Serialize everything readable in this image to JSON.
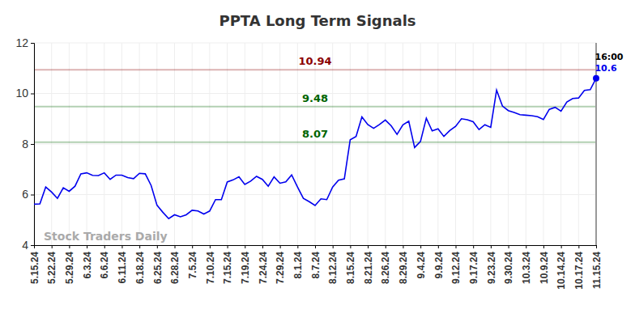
{
  "chart_data": {
    "type": "line",
    "title": "PPTA Long Term Signals",
    "categories": [
      "5.15.24",
      null,
      null,
      "5.22.24",
      null,
      null,
      "5.29.24",
      null,
      null,
      "6.3.24",
      null,
      null,
      "6.6.24",
      null,
      null,
      "6.11.24",
      null,
      null,
      "6.18.24",
      null,
      null,
      "6.25.24",
      null,
      null,
      "6.28.24",
      null,
      null,
      "7.5.24",
      null,
      null,
      "7.10.24",
      null,
      null,
      "7.15.24",
      null,
      null,
      "7.19.24",
      null,
      null,
      "7.24.24",
      null,
      null,
      "7.29.24",
      null,
      null,
      "8.1.24",
      null,
      null,
      "8.7.24",
      null,
      null,
      "8.12.24",
      null,
      null,
      "8.15.24",
      null,
      null,
      "8.21.24",
      null,
      null,
      "8.26.24",
      null,
      null,
      "8.29.24",
      null,
      null,
      "9.4.24",
      null,
      null,
      "9.9.24",
      null,
      null,
      "9.12.24",
      null,
      null,
      "9.17.24",
      null,
      null,
      "9.23.24",
      null,
      null,
      "9.30.24",
      null,
      null,
      "10.3.24",
      null,
      null,
      "10.9.24",
      null,
      null,
      "10.14.24",
      null,
      null,
      "10.17.24",
      null,
      null,
      "11.15.24"
    ],
    "values": [
      5.62,
      5.63,
      6.3,
      6.1,
      5.85,
      6.27,
      6.13,
      6.33,
      6.82,
      6.86,
      6.76,
      6.75,
      6.86,
      6.6,
      6.77,
      6.77,
      6.67,
      6.63,
      6.84,
      6.82,
      6.36,
      5.58,
      5.3,
      5.05,
      5.2,
      5.12,
      5.2,
      5.38,
      5.35,
      5.23,
      5.35,
      5.8,
      5.8,
      6.5,
      6.58,
      6.7,
      6.4,
      6.53,
      6.72,
      6.6,
      6.33,
      6.7,
      6.45,
      6.5,
      6.78,
      6.3,
      5.85,
      5.72,
      5.57,
      5.83,
      5.8,
      6.3,
      6.57,
      6.62,
      8.17,
      8.3,
      9.07,
      8.77,
      8.62,
      8.77,
      8.95,
      8.72,
      8.38,
      8.76,
      8.9,
      7.86,
      8.1,
      9.02,
      8.52,
      8.6,
      8.3,
      8.53,
      8.7,
      9.0,
      8.96,
      8.88,
      8.57,
      8.76,
      8.66,
      10.13,
      9.5,
      9.32,
      9.25,
      9.16,
      9.14,
      9.12,
      9.08,
      8.97,
      9.37,
      9.45,
      9.3,
      9.66,
      9.8,
      9.82,
      10.12,
      10.15,
      10.6
    ],
    "color": "#0000ee",
    "ylim": [
      4,
      12
    ],
    "yticks": [
      4,
      6,
      8,
      10,
      12
    ],
    "grid": true,
    "reference_lines": [
      {
        "value": 10.94,
        "color": "#8b0000"
      },
      {
        "value": 9.48,
        "color": "#006400"
      },
      {
        "value": 8.07,
        "color": "#006400"
      }
    ],
    "last_label": "16:00",
    "watermark": "Stock Traders Daily"
  }
}
